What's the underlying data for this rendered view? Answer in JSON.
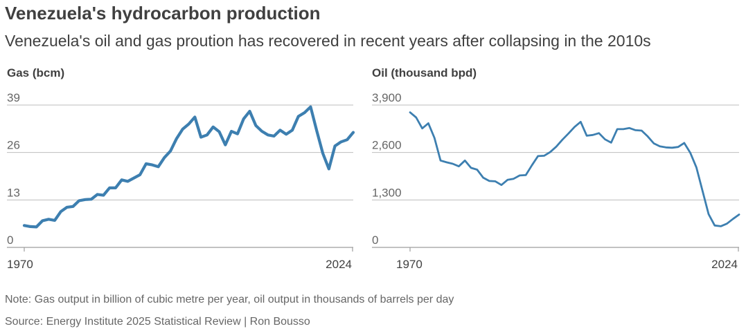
{
  "header": {
    "title": "Venezuela's hydrocarbon production",
    "subtitle": "Venezuela's oil and gas proution has recovered in recent years after collapsing in the 2010s"
  },
  "footer": {
    "note": "Note: Gas output in billion of cubic metre per year, oil output in thousands of barrels per day",
    "source": "Source: Energy Institute 2025 Statistical Review | Ron Bousso"
  },
  "colors": {
    "line": "#3d7fb0",
    "grid": "#bdbdbd"
  },
  "chart_data": [
    {
      "type": "line",
      "title": "Gas (bcm)",
      "ylim": [
        0,
        39
      ],
      "yticks": [
        "0",
        "13",
        "26",
        "39"
      ],
      "xticks": [
        "1970",
        "2024"
      ],
      "grid": true,
      "x": [
        1970,
        1971,
        1972,
        1973,
        1974,
        1975,
        1976,
        1977,
        1978,
        1979,
        1980,
        1981,
        1982,
        1983,
        1984,
        1985,
        1986,
        1987,
        1988,
        1989,
        1990,
        1991,
        1992,
        1993,
        1994,
        1995,
        1996,
        1997,
        1998,
        1999,
        2000,
        2001,
        2002,
        2003,
        2004,
        2005,
        2006,
        2007,
        2008,
        2009,
        2010,
        2011,
        2012,
        2013,
        2014,
        2015,
        2016,
        2017,
        2018,
        2019,
        2020,
        2021,
        2022,
        2023,
        2024
      ],
      "series": [
        {
          "values": [
            6.0,
            5.7,
            5.6,
            7.3,
            7.7,
            7.4,
            9.8,
            11.0,
            11.2,
            12.8,
            13.1,
            13.2,
            14.5,
            14.3,
            16.3,
            16.3,
            18.5,
            18.1,
            19.0,
            19.9,
            22.9,
            22.6,
            22.1,
            24.6,
            26.4,
            29.8,
            32.4,
            33.8,
            35.7,
            30.2,
            30.8,
            33.0,
            31.7,
            28.1,
            31.8,
            31.1,
            35.2,
            37.3,
            33.4,
            31.8,
            30.8,
            30.5,
            32.1,
            31.0,
            32.1,
            35.9,
            36.9,
            38.5,
            32.0,
            25.8,
            21.5,
            27.8,
            28.9,
            29.5,
            31.5
          ]
        }
      ]
    },
    {
      "type": "line",
      "title": "Oil (thousand bpd)",
      "ylim": [
        0,
        3900
      ],
      "yticks": [
        "0",
        "1,300",
        "2,600",
        "3,900"
      ],
      "xticks": [
        "1970",
        "2024"
      ],
      "grid": true,
      "x": [
        1970,
        1971,
        1972,
        1973,
        1974,
        1975,
        1976,
        1977,
        1978,
        1979,
        1980,
        1981,
        1982,
        1983,
        1984,
        1985,
        1986,
        1987,
        1988,
        1989,
        1990,
        1991,
        1992,
        1993,
        1994,
        1995,
        1996,
        1997,
        1998,
        1999,
        2000,
        2001,
        2002,
        2003,
        2004,
        2005,
        2006,
        2007,
        2008,
        2009,
        2010,
        2011,
        2012,
        2013,
        2014,
        2015,
        2016,
        2017,
        2018,
        2019,
        2020,
        2021,
        2022,
        2023,
        2024
      ],
      "series": [
        {
          "values": [
            3700,
            3560,
            3260,
            3400,
            3000,
            2380,
            2330,
            2290,
            2220,
            2380,
            2180,
            2130,
            1910,
            1820,
            1810,
            1710,
            1850,
            1880,
            1970,
            1980,
            2250,
            2500,
            2510,
            2610,
            2760,
            2950,
            3120,
            3300,
            3440,
            3060,
            3080,
            3130,
            2960,
            2870,
            3240,
            3240,
            3270,
            3210,
            3200,
            3040,
            2850,
            2770,
            2740,
            2730,
            2750,
            2860,
            2590,
            2190,
            1550,
            910,
            600,
            580,
            650,
            780,
            900
          ]
        }
      ]
    }
  ]
}
